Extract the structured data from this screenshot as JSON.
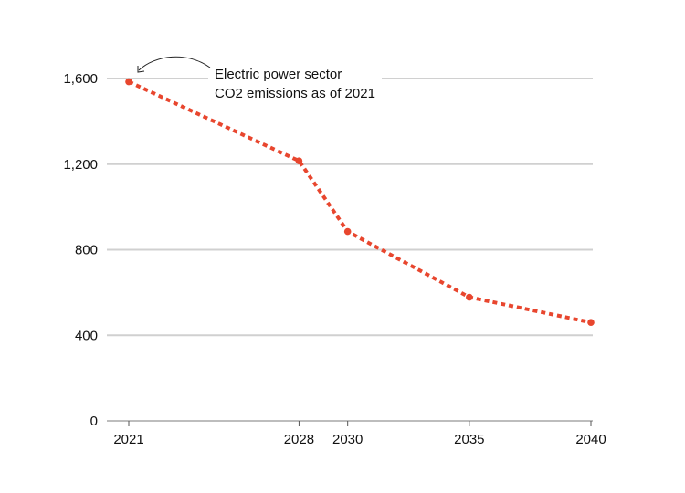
{
  "chart_data": {
    "type": "line",
    "title": "",
    "xlabel": "",
    "ylabel": "",
    "x": [
      2021,
      2028,
      2030,
      2035,
      2040
    ],
    "series": [
      {
        "values": [
          1585,
          1215,
          885,
          578,
          460
        ]
      }
    ],
    "xticks": [
      "2021",
      "2028",
      "2030",
      "2035",
      "2040"
    ],
    "yticks": [
      "0",
      "400",
      "800",
      "1,200",
      "1,600"
    ],
    "ylim": [
      0,
      1600
    ],
    "xlim": [
      2021,
      2040
    ],
    "grid": "horizontal",
    "line_style": "dotted",
    "series_color": "#e8462e",
    "gridline_color": "#d0d0d0",
    "annotation": {
      "lines": [
        "Electric power sector",
        "CO2 emissions as of 2021"
      ],
      "points_to_x": 2021
    }
  }
}
